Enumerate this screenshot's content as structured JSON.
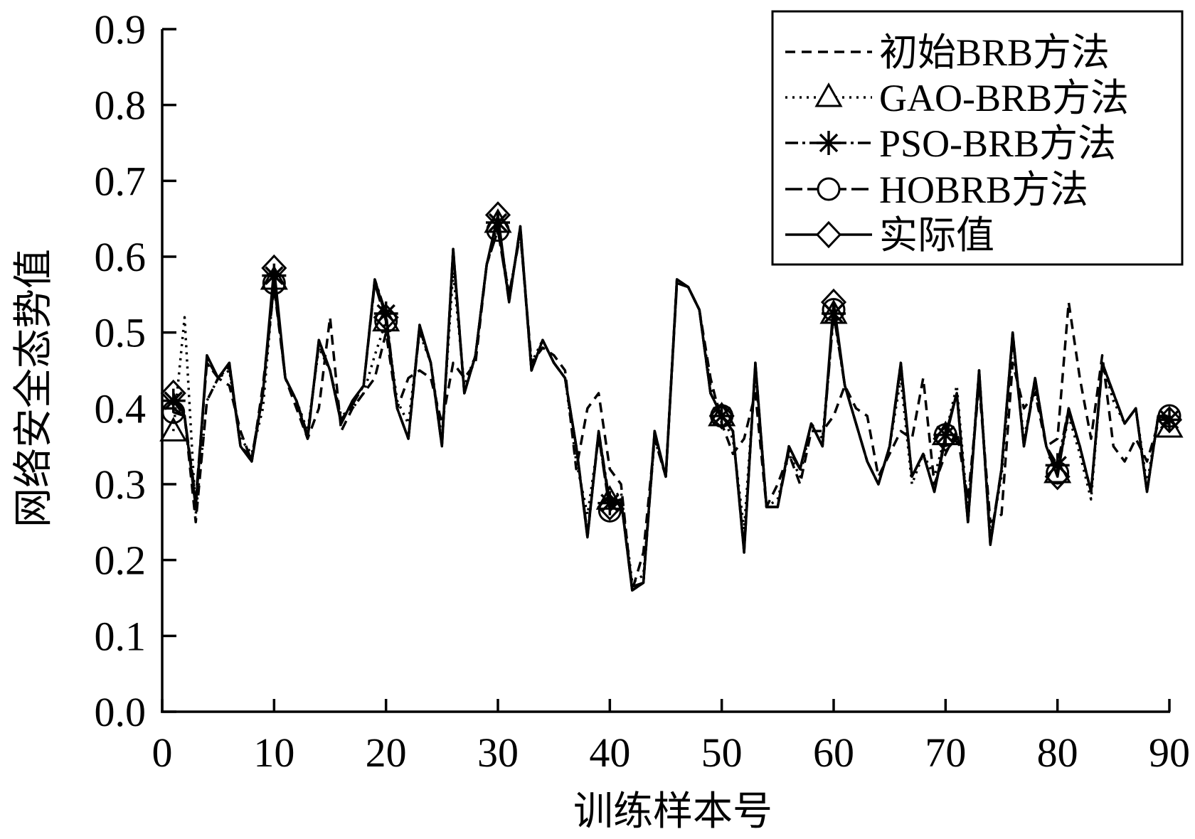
{
  "chart_data": {
    "type": "line",
    "xlabel": "训练样本号",
    "ylabel": "网络安全态势值",
    "xlim": [
      0,
      90
    ],
    "ylim": [
      0,
      0.9
    ],
    "xticks": [
      "0",
      "10",
      "20",
      "30",
      "40",
      "50",
      "60",
      "70",
      "80",
      "90"
    ],
    "yticks": [
      "0.0",
      "0.1",
      "0.2",
      "0.3",
      "0.4",
      "0.5",
      "0.6",
      "0.7",
      "0.8",
      "0.9"
    ],
    "grid": false,
    "legend": "top-right",
    "x": [
      1,
      2,
      3,
      4,
      5,
      6,
      7,
      8,
      9,
      10,
      11,
      12,
      13,
      14,
      15,
      16,
      17,
      18,
      19,
      20,
      21,
      22,
      23,
      24,
      25,
      26,
      27,
      28,
      29,
      30,
      31,
      32,
      33,
      34,
      35,
      36,
      37,
      38,
      39,
      40,
      41,
      42,
      43,
      44,
      45,
      46,
      47,
      48,
      49,
      50,
      51,
      52,
      53,
      54,
      55,
      56,
      57,
      58,
      59,
      60,
      61,
      62,
      63,
      64,
      65,
      66,
      67,
      68,
      69,
      70,
      71,
      72,
      73,
      74,
      75,
      76,
      77,
      78,
      79,
      80,
      81,
      82,
      83,
      84,
      85,
      86,
      87,
      88,
      89,
      90
    ],
    "series": [
      {
        "name": "初始BRB方法",
        "values": [
          0.4,
          0.39,
          0.25,
          0.41,
          0.44,
          0.43,
          0.37,
          0.33,
          0.43,
          0.56,
          0.44,
          0.4,
          0.36,
          0.4,
          0.52,
          0.37,
          0.4,
          0.42,
          0.44,
          0.5,
          0.4,
          0.44,
          0.45,
          0.44,
          0.38,
          0.46,
          0.44,
          0.46,
          0.59,
          0.64,
          0.55,
          0.63,
          0.46,
          0.48,
          0.47,
          0.45,
          0.32,
          0.4,
          0.42,
          0.32,
          0.3,
          0.16,
          0.21,
          0.36,
          0.31,
          0.57,
          0.56,
          0.53,
          0.44,
          0.38,
          0.34,
          0.36,
          0.42,
          0.27,
          0.3,
          0.34,
          0.3,
          0.37,
          0.37,
          0.39,
          0.43,
          0.4,
          0.39,
          0.31,
          0.34,
          0.37,
          0.36,
          0.44,
          0.3,
          0.34,
          0.37,
          0.28,
          0.43,
          0.25,
          0.26,
          0.46,
          0.4,
          0.42,
          0.35,
          0.36,
          0.54,
          0.44,
          0.36,
          0.47,
          0.35,
          0.33,
          0.36,
          0.33,
          0.38,
          0.38
        ]
      },
      {
        "name": "GAO-BRB方法",
        "values": [
          0.37,
          0.52,
          0.26,
          0.41,
          0.44,
          0.45,
          0.36,
          0.34,
          0.4,
          0.57,
          0.44,
          0.41,
          0.37,
          0.48,
          0.45,
          0.39,
          0.4,
          0.42,
          0.47,
          0.515,
          0.41,
          0.38,
          0.5,
          0.46,
          0.36,
          0.58,
          0.43,
          0.47,
          0.59,
          0.645,
          0.55,
          0.63,
          0.46,
          0.49,
          0.46,
          0.44,
          0.33,
          0.26,
          0.36,
          0.28,
          0.29,
          0.17,
          0.18,
          0.36,
          0.31,
          0.57,
          0.56,
          0.53,
          0.43,
          0.39,
          0.36,
          0.24,
          0.45,
          0.27,
          0.28,
          0.34,
          0.31,
          0.38,
          0.36,
          0.525,
          0.43,
          0.38,
          0.33,
          0.3,
          0.35,
          0.44,
          0.3,
          0.34,
          0.31,
          0.365,
          0.43,
          0.26,
          0.45,
          0.23,
          0.31,
          0.49,
          0.36,
          0.43,
          0.35,
          0.315,
          0.39,
          0.34,
          0.28,
          0.46,
          0.41,
          0.38,
          0.4,
          0.3,
          0.39,
          0.375
        ]
      },
      {
        "name": "PSO-BRB方法",
        "values": [
          0.41,
          0.39,
          0.27,
          0.465,
          0.44,
          0.46,
          0.35,
          0.33,
          0.42,
          0.575,
          0.44,
          0.41,
          0.36,
          0.49,
          0.45,
          0.38,
          0.41,
          0.43,
          0.57,
          0.525,
          0.4,
          0.36,
          0.51,
          0.46,
          0.35,
          0.61,
          0.42,
          0.47,
          0.59,
          0.645,
          0.54,
          0.64,
          0.45,
          0.49,
          0.46,
          0.44,
          0.35,
          0.23,
          0.37,
          0.275,
          0.28,
          0.16,
          0.17,
          0.37,
          0.31,
          0.57,
          0.56,
          0.53,
          0.42,
          0.39,
          0.37,
          0.21,
          0.46,
          0.27,
          0.27,
          0.35,
          0.32,
          0.38,
          0.35,
          0.525,
          0.43,
          0.38,
          0.33,
          0.3,
          0.35,
          0.46,
          0.31,
          0.34,
          0.29,
          0.365,
          0.42,
          0.25,
          0.45,
          0.22,
          0.32,
          0.5,
          0.35,
          0.44,
          0.35,
          0.325,
          0.4,
          0.35,
          0.29,
          0.46,
          0.42,
          0.38,
          0.4,
          0.29,
          0.39,
          0.385
        ]
      },
      {
        "name": "HOBRB方法",
        "values": [
          0.395,
          0.39,
          0.28,
          0.46,
          0.44,
          0.455,
          0.35,
          0.335,
          0.42,
          0.565,
          0.44,
          0.41,
          0.365,
          0.485,
          0.45,
          0.385,
          0.405,
          0.43,
          0.565,
          0.515,
          0.4,
          0.36,
          0.505,
          0.46,
          0.355,
          0.605,
          0.42,
          0.47,
          0.59,
          0.635,
          0.545,
          0.635,
          0.45,
          0.49,
          0.46,
          0.44,
          0.35,
          0.235,
          0.365,
          0.265,
          0.28,
          0.165,
          0.17,
          0.365,
          0.31,
          0.565,
          0.56,
          0.53,
          0.42,
          0.39,
          0.37,
          0.215,
          0.455,
          0.27,
          0.27,
          0.345,
          0.32,
          0.38,
          0.35,
          0.53,
          0.43,
          0.38,
          0.33,
          0.3,
          0.35,
          0.455,
          0.31,
          0.34,
          0.29,
          0.365,
          0.42,
          0.25,
          0.445,
          0.225,
          0.32,
          0.495,
          0.35,
          0.435,
          0.35,
          0.315,
          0.395,
          0.35,
          0.29,
          0.455,
          0.42,
          0.38,
          0.4,
          0.29,
          0.39,
          0.39
        ]
      },
      {
        "name": "实际值",
        "values": [
          0.42,
          0.39,
          0.27,
          0.47,
          0.44,
          0.46,
          0.35,
          0.33,
          0.42,
          0.585,
          0.44,
          0.41,
          0.36,
          0.49,
          0.45,
          0.38,
          0.41,
          0.43,
          0.57,
          0.52,
          0.4,
          0.36,
          0.51,
          0.46,
          0.35,
          0.61,
          0.42,
          0.47,
          0.59,
          0.655,
          0.54,
          0.64,
          0.45,
          0.49,
          0.46,
          0.44,
          0.35,
          0.23,
          0.37,
          0.27,
          0.28,
          0.16,
          0.17,
          0.37,
          0.31,
          0.57,
          0.56,
          0.53,
          0.42,
          0.39,
          0.37,
          0.21,
          0.46,
          0.27,
          0.27,
          0.35,
          0.32,
          0.38,
          0.35,
          0.54,
          0.43,
          0.38,
          0.33,
          0.3,
          0.35,
          0.46,
          0.31,
          0.34,
          0.29,
          0.36,
          0.42,
          0.25,
          0.45,
          0.22,
          0.32,
          0.5,
          0.35,
          0.44,
          0.35,
          0.31,
          0.4,
          0.35,
          0.29,
          0.46,
          0.42,
          0.38,
          0.4,
          0.29,
          0.39,
          0.385
        ]
      }
    ]
  }
}
